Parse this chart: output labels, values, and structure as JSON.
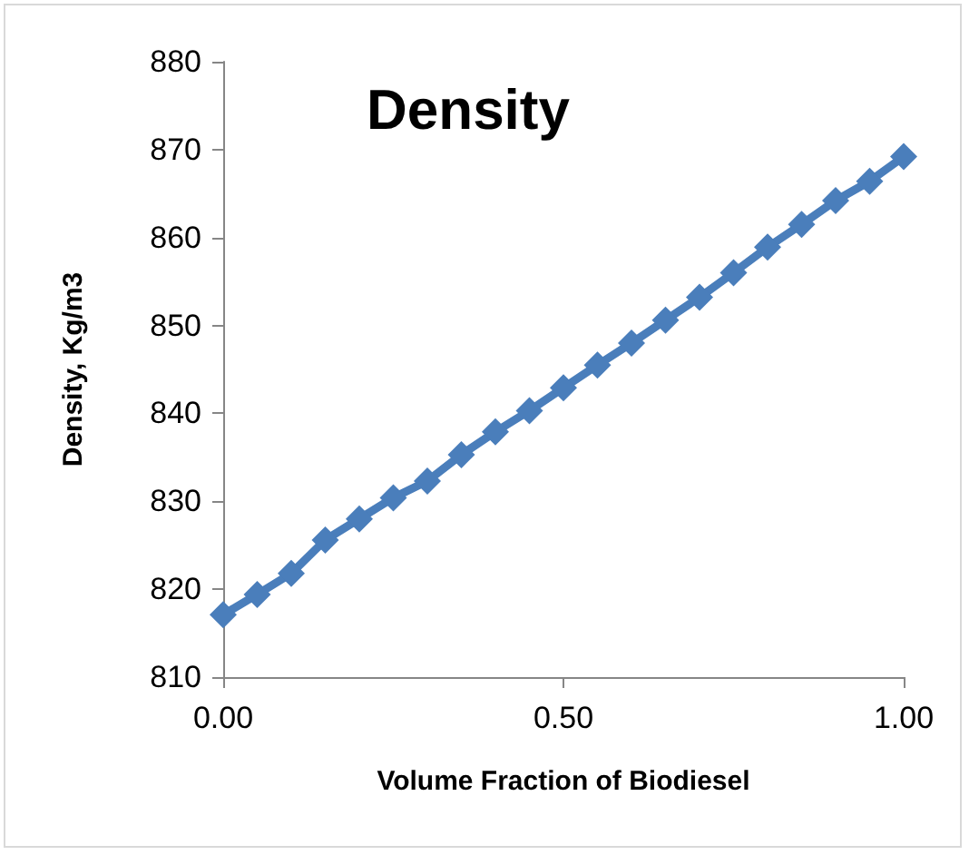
{
  "chart_data": {
    "type": "line",
    "title": "Density",
    "xlabel": "Volume Fraction of Biodiesel",
    "ylabel": "Density, Kg/m3",
    "x": [
      0,
      0.05,
      0.1,
      0.15,
      0.2,
      0.25,
      0.3,
      0.35,
      0.4,
      0.45,
      0.5,
      0.55,
      0.6,
      0.65,
      0.7,
      0.75,
      0.8,
      0.85,
      0.9,
      0.95,
      1.0
    ],
    "series": [
      {
        "color": "#4a7ebb",
        "values": [
          817.1,
          819.4,
          821.8,
          825.6,
          828.0,
          830.4,
          832.3,
          835.3,
          837.9,
          840.3,
          842.9,
          845.5,
          848.0,
          850.6,
          853.2,
          856.0,
          858.9,
          861.5,
          864.2,
          866.4,
          869.2
        ]
      }
    ],
    "xlim": [
      0,
      1
    ],
    "xticks": [
      {
        "value": 0,
        "label": "0.00"
      },
      {
        "value": 0.5,
        "label": "0.50"
      },
      {
        "value": 1,
        "label": "1.00"
      }
    ],
    "ylim": [
      810,
      880
    ],
    "yticks": [
      810,
      820,
      830,
      840,
      850,
      860,
      870,
      880
    ],
    "marker": "diamond",
    "line_style": "solid"
  }
}
